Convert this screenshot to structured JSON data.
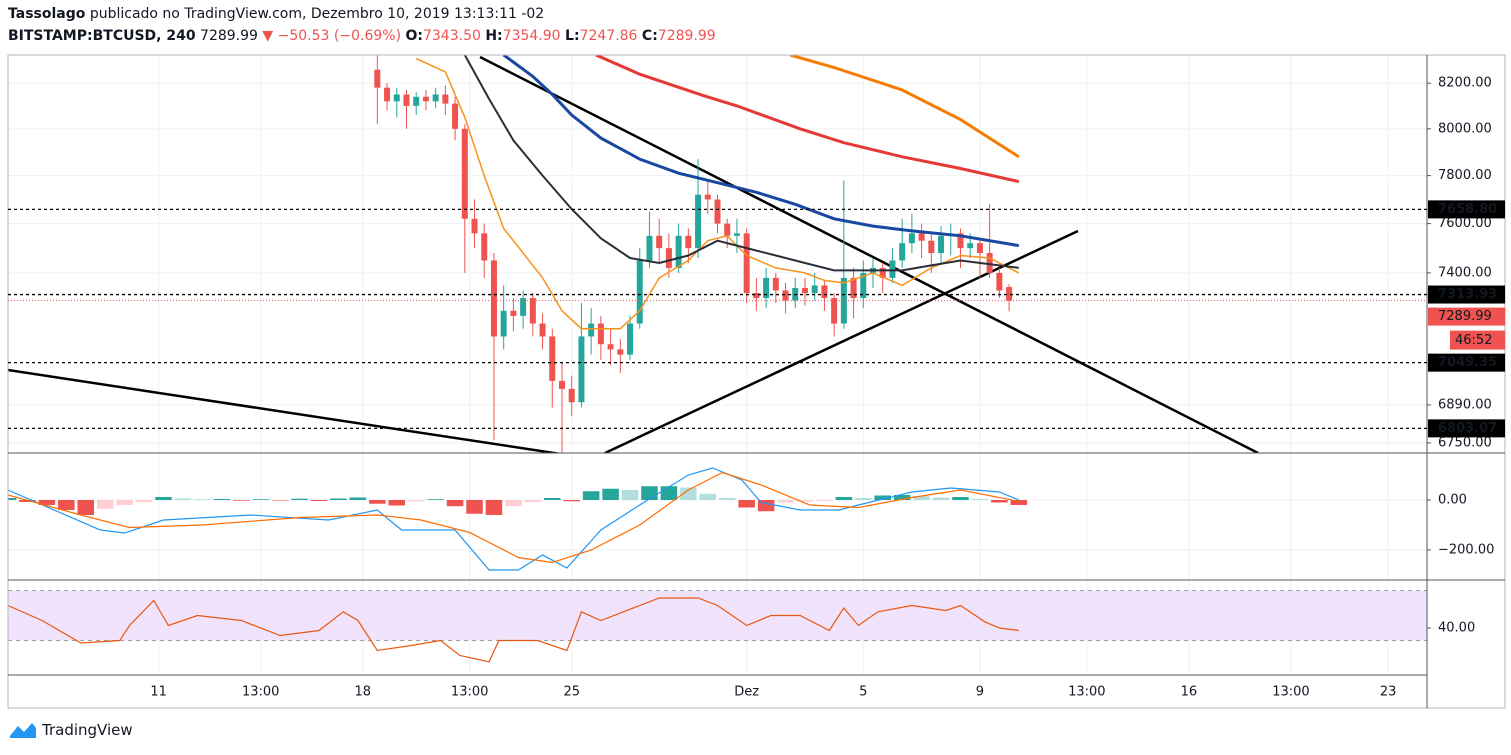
{
  "header": {
    "author": "Tassolago",
    "published": "publicado no TradingView.com, Dezembro 10, 2019 13:13:11 -02",
    "symbol": "BITSTAMP:BTCUSD, 240",
    "price": "7289.99",
    "arrow": "▼",
    "change": "−50.53 (−0.69%)",
    "ohlc": [
      {
        "label": "O:",
        "value": "7343.50"
      },
      {
        "label": "H:",
        "value": "7354.90"
      },
      {
        "label": "L:",
        "value": "7247.86"
      },
      {
        "label": "C:",
        "value": "7289.99"
      }
    ]
  },
  "footer": {
    "brand": "TradingView"
  },
  "chart_data": [
    {
      "type": "candlestick",
      "log_scale": true,
      "grid": true,
      "up_color": "#26a69a",
      "down_color": "#ef5350",
      "ylim": [
        6713,
        8326
      ],
      "yticks": [
        {
          "value": 8200,
          "label": "8200.00"
        },
        {
          "value": 8000,
          "label": "8000.00"
        },
        {
          "value": 7800,
          "label": "7800.00"
        },
        {
          "value": 7600,
          "label": "7600.00"
        },
        {
          "value": 7400,
          "label": "7400.00"
        },
        {
          "value": 6890,
          "label": "6890.00"
        },
        {
          "value": 6750,
          "label": "6750.00"
        }
      ],
      "xlim": [
        0,
        292
      ],
      "xticks": [
        {
          "value": 31,
          "label": "11"
        },
        {
          "value": 52,
          "label": "13:00"
        },
        {
          "value": 73,
          "label": "18"
        },
        {
          "value": 95,
          "label": "13:00"
        },
        {
          "value": 116,
          "label": "25"
        },
        {
          "value": 152,
          "label": "Dez"
        },
        {
          "value": 176,
          "label": "5"
        },
        {
          "value": 200,
          "label": "9"
        },
        {
          "value": 222,
          "label": "13:00"
        },
        {
          "value": 243,
          "label": "16"
        },
        {
          "value": 264,
          "label": "13:00"
        },
        {
          "value": 284,
          "label": "23"
        }
      ],
      "x": [
        76,
        78,
        80,
        82,
        84,
        86,
        88,
        90,
        92,
        94,
        96,
        98,
        100,
        102,
        104,
        106,
        108,
        110,
        112,
        114,
        116,
        118,
        120,
        122,
        124,
        126,
        128,
        130,
        132,
        134,
        136,
        138,
        140,
        142,
        144,
        146,
        148,
        150,
        152,
        154,
        156,
        158,
        160,
        162,
        164,
        166,
        168,
        170,
        172,
        174,
        176,
        178,
        180,
        182,
        184,
        186,
        188,
        190,
        192,
        194,
        196,
        198,
        200,
        202,
        204,
        206
      ],
      "open": [
        8260,
        8180,
        8120,
        8150,
        8100,
        8140,
        8120,
        8150,
        8110,
        8000,
        7620,
        7560,
        7450,
        7150,
        7250,
        7230,
        7300,
        7200,
        7150,
        6980,
        6950,
        6900,
        7150,
        7200,
        7120,
        7100,
        7080,
        7200,
        7450,
        7550,
        7500,
        7420,
        7550,
        7500,
        7720,
        7700,
        7600,
        7550,
        7560,
        7320,
        7300,
        7380,
        7330,
        7290,
        7340,
        7320,
        7350,
        7300,
        7200,
        7380,
        7300,
        7400,
        7420,
        7380,
        7450,
        7520,
        7560,
        7530,
        7480,
        7550,
        7560,
        7500,
        7520,
        7480,
        7400,
        7343.5
      ],
      "high": [
        8330,
        8200,
        8180,
        8170,
        8160,
        8170,
        8180,
        8190,
        8140,
        8020,
        7700,
        7600,
        7480,
        7350,
        7300,
        7330,
        7320,
        7240,
        7180,
        7050,
        7000,
        7280,
        7260,
        7230,
        7180,
        7140,
        7230,
        7500,
        7650,
        7620,
        7560,
        7600,
        7580,
        7870,
        7780,
        7720,
        7620,
        7620,
        7580,
        7380,
        7420,
        7400,
        7360,
        7380,
        7380,
        7400,
        7370,
        7320,
        7780,
        7420,
        7450,
        7460,
        7440,
        7500,
        7620,
        7640,
        7600,
        7560,
        7590,
        7600,
        7580,
        7560,
        7540,
        7680,
        7420,
        7354.9
      ],
      "low": [
        8020,
        8080,
        8050,
        8000,
        8060,
        8080,
        8090,
        8060,
        7950,
        7400,
        7500,
        7380,
        6760,
        7100,
        7170,
        7180,
        7150,
        7100,
        6880,
        6700,
        6850,
        6880,
        7080,
        7060,
        7040,
        7010,
        7060,
        7180,
        7420,
        7440,
        7380,
        7400,
        7440,
        7460,
        7640,
        7560,
        7500,
        7480,
        7280,
        7250,
        7260,
        7280,
        7240,
        7260,
        7270,
        7290,
        7250,
        7150,
        7180,
        7220,
        7260,
        7340,
        7320,
        7360,
        7420,
        7480,
        7460,
        7400,
        7440,
        7470,
        7420,
        7460,
        7380,
        7380,
        7300,
        7247.86
      ],
      "close": [
        8180,
        8120,
        8150,
        8100,
        8140,
        8120,
        8150,
        8110,
        8000,
        7620,
        7560,
        7450,
        7150,
        7250,
        7230,
        7300,
        7200,
        7150,
        6980,
        6950,
        6900,
        7150,
        7200,
        7120,
        7100,
        7080,
        7200,
        7450,
        7550,
        7500,
        7420,
        7550,
        7500,
        7720,
        7700,
        7600,
        7550,
        7560,
        7320,
        7300,
        7380,
        7330,
        7290,
        7340,
        7320,
        7350,
        7300,
        7200,
        7380,
        7300,
        7400,
        7420,
        7380,
        7450,
        7520,
        7560,
        7530,
        7480,
        7550,
        7560,
        7500,
        7520,
        7480,
        7400,
        7330,
        7289.99
      ],
      "overlays": [
        {
          "color": "#f7931a",
          "width": 1.5,
          "x": [
            84,
            90,
            94,
            98,
            102,
            106,
            110,
            114,
            118,
            126,
            130,
            134,
            140,
            144,
            148,
            152,
            158,
            164,
            168,
            172,
            178,
            184,
            190,
            196,
            202,
            208
          ],
          "values": [
            8310,
            8250,
            8050,
            7800,
            7580,
            7480,
            7380,
            7250,
            7180,
            7180,
            7250,
            7380,
            7450,
            7530,
            7550,
            7470,
            7420,
            7400,
            7370,
            7360,
            7400,
            7350,
            7420,
            7470,
            7460,
            7400
          ]
        },
        {
          "color": "#2a2e39",
          "width": 2,
          "x": [
            94,
            99,
            104,
            110,
            116,
            122,
            128,
            134,
            140,
            146,
            152,
            158,
            164,
            170,
            176,
            184,
            190,
            196,
            208
          ],
          "values": [
            8326,
            8130,
            7950,
            7800,
            7660,
            7540,
            7460,
            7440,
            7470,
            7530,
            7500,
            7470,
            7440,
            7410,
            7410,
            7410,
            7430,
            7450,
            7420
          ]
        },
        {
          "color": "#1848a0",
          "width": 3,
          "x": [
            102,
            108,
            112,
            116,
            122,
            130,
            138,
            146,
            154,
            162,
            170,
            178,
            186,
            196,
            208
          ],
          "values": [
            8326,
            8230,
            8150,
            8060,
            7960,
            7870,
            7810,
            7770,
            7730,
            7680,
            7620,
            7590,
            7570,
            7550,
            7510
          ]
        },
        {
          "color": "#e53935",
          "width": 3,
          "x": [
            121,
            130,
            143,
            150,
            163,
            172,
            184,
            196,
            208
          ],
          "values": [
            8326,
            8240,
            8146,
            8100,
            8000,
            7940,
            7880,
            7830,
            7775
          ]
        },
        {
          "color": "#f57c00",
          "width": 3,
          "x": [
            161,
            170,
            184,
            196,
            208
          ],
          "values": [
            8326,
            8270,
            8170,
            8040,
            7880
          ]
        }
      ],
      "price_lines": [
        {
          "value": 7658.8,
          "label": "7658.80"
        },
        {
          "value": 7313.93,
          "label": "7313.93"
        },
        {
          "value": 7049.35,
          "label": "7049.35"
        },
        {
          "value": 6803.07,
          "label": "6803.07"
        }
      ],
      "last_price": {
        "value": 7289.99,
        "label": "7289.99",
        "countdown": "46:52",
        "color": "#ef5350"
      }
    },
    {
      "type": "macd",
      "grid": true,
      "ylim": [
        -320,
        188
      ],
      "yticks": [
        {
          "value": 0,
          "label": "0.00"
        },
        {
          "value": -200,
          "label": "−200.00"
        }
      ],
      "histogram": {
        "colors": [
          "#26a69a",
          "#b2dfdb",
          "#ef5350",
          "#ffcdd2"
        ],
        "x": [
          0,
          4,
          8,
          12,
          16,
          20,
          24,
          28,
          32,
          36,
          40,
          44,
          48,
          52,
          56,
          60,
          64,
          68,
          72,
          76,
          80,
          84,
          88,
          92,
          96,
          100,
          104,
          108,
          112,
          116,
          120,
          124,
          128,
          132,
          136,
          140,
          144,
          148,
          152,
          156,
          160,
          164,
          168,
          172,
          176,
          180,
          184,
          188,
          192,
          196,
          200,
          204,
          208
        ],
        "values": [
          8,
          -8,
          -20,
          -40,
          -60,
          -35,
          -20,
          -8,
          12,
          6,
          3,
          4,
          -3,
          3,
          -2,
          5,
          -4,
          6,
          10,
          -15,
          -22,
          -5,
          3,
          -25,
          -55,
          -60,
          -25,
          -8,
          8,
          -5,
          35,
          45,
          40,
          55,
          55,
          50,
          25,
          8,
          -30,
          -45,
          -10,
          -6,
          -4,
          12,
          8,
          18,
          20,
          15,
          10,
          12,
          4,
          -10,
          -20
        ]
      },
      "lines": [
        {
          "color": "#2196f3",
          "x": [
            0,
            19,
            24,
            32,
            50,
            66,
            76,
            81,
            92,
            99,
            105,
            110,
            115,
            122,
            130,
            140,
            145,
            151,
            155,
            163,
            171,
            175,
            186,
            194,
            204,
            208
          ],
          "values": [
            40,
            -120,
            -132,
            -80,
            -60,
            -80,
            -40,
            -120,
            -120,
            -280,
            -280,
            -220,
            -272,
            -120,
            -20,
            100,
            128,
            80,
            -10,
            -40,
            -40,
            -20,
            32,
            48,
            32,
            0
          ]
        },
        {
          "color": "#ff6d00",
          "x": [
            0,
            15,
            25,
            40,
            60,
            76,
            85,
            95,
            105,
            112,
            120,
            130,
            140,
            147,
            155,
            165,
            175,
            186,
            196,
            208
          ],
          "values": [
            20,
            -60,
            -110,
            -100,
            -70,
            -60,
            -80,
            -130,
            -230,
            -250,
            -200,
            -100,
            40,
            110,
            60,
            -20,
            -30,
            10,
            40,
            -5
          ]
        }
      ]
    },
    {
      "type": "rsi",
      "grid": true,
      "ylim": [
        2.4,
        78.4
      ],
      "yticks": [
        {
          "value": 40,
          "label": "40.00"
        }
      ],
      "band": [
        30,
        70
      ],
      "band_color": "#f1e3fb",
      "series": [
        {
          "color": "#e8570f",
          "x": [
            0,
            7,
            15,
            23,
            25,
            30,
            33,
            39,
            48,
            56,
            64,
            69,
            72,
            76,
            83,
            89,
            93,
            99,
            101,
            109,
            115,
            118,
            122,
            130,
            134,
            142,
            146,
            152,
            157,
            163,
            169,
            172,
            175,
            179,
            186,
            193,
            196,
            201,
            204,
            208
          ],
          "values": [
            58,
            46,
            28,
            30,
            42,
            62,
            42,
            50,
            46,
            34,
            38,
            53,
            46,
            22,
            26,
            30,
            18,
            13,
            30,
            30,
            22,
            53,
            46,
            58,
            64,
            64,
            58,
            42,
            50,
            50,
            38,
            56,
            42,
            53,
            58,
            54,
            58,
            45,
            40,
            38
          ]
        }
      ]
    }
  ]
}
